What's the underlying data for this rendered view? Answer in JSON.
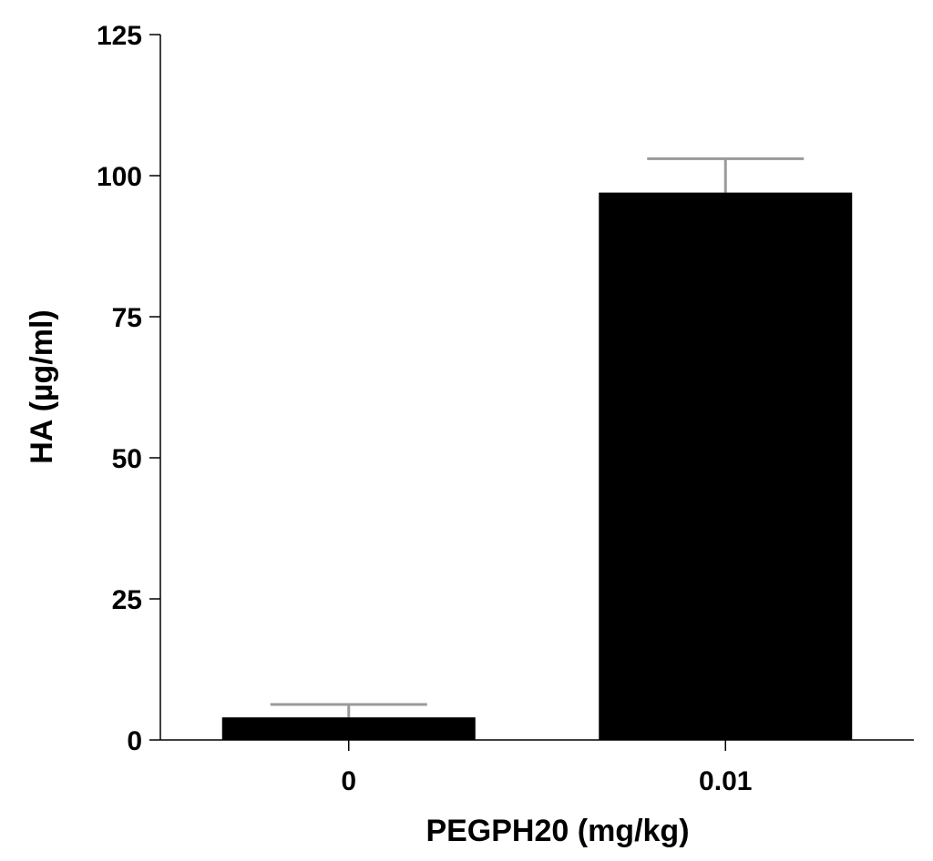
{
  "chart_data": {
    "type": "bar",
    "title": "",
    "xlabel": "PEGPH20 (mg/kg)",
    "ylabel": "HA (µg/ml)",
    "categories": [
      "0",
      "0.01"
    ],
    "values": [
      4,
      97
    ],
    "error_upper": [
      6.3,
      103
    ],
    "ylim": [
      0,
      125
    ],
    "yticks": [
      0,
      25,
      50,
      75,
      100,
      125
    ],
    "grid": false,
    "legend": "none",
    "colors": {
      "bar": "#000000",
      "error_bar": "#9a9a9a",
      "axis": "#000000"
    }
  }
}
